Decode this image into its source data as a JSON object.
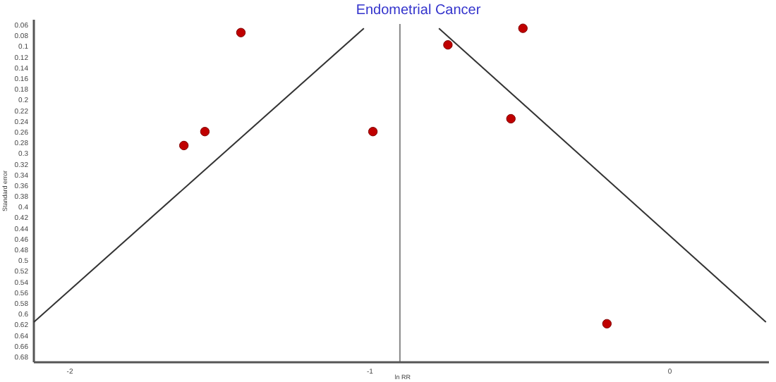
{
  "chart_data": {
    "type": "scatter",
    "title": "Endometrial Cancer",
    "xlabel": "ln RR",
    "ylabel": "Standard error",
    "xlim": [
      -2.12,
      0.33
    ],
    "xticks": [
      -2,
      -1,
      0
    ],
    "ylim": [
      0.69,
      0.05
    ],
    "yticks": [
      0.06,
      0.08,
      0.1,
      0.12,
      0.14,
      0.16,
      0.18,
      0.2,
      0.22,
      0.24,
      0.26,
      0.28,
      0.3,
      0.32,
      0.34,
      0.36,
      0.38,
      0.4,
      0.42,
      0.44,
      0.46,
      0.48,
      0.5,
      0.52,
      0.54,
      0.56,
      0.58,
      0.6,
      0.62,
      0.64,
      0.66,
      0.68
    ],
    "grid": false,
    "series": [
      {
        "color": "#c00000",
        "marker": "circle",
        "x": [
          -1.43,
          -1.55,
          -1.62,
          -0.99,
          -0.74,
          -0.49,
          -0.53,
          -0.21
        ],
        "values": [
          0.074,
          0.259,
          0.285,
          0.259,
          0.097,
          0.066,
          0.235,
          0.618
        ]
      },
      {
        "type": "line",
        "color": "#333333",
        "marker": "none",
        "x": [
          -2.12,
          -1.02
        ],
        "values": [
          0.615,
          0.066
        ]
      },
      {
        "type": "line",
        "color": "#333333",
        "marker": "none",
        "x": [
          -0.77,
          0.32
        ],
        "values": [
          0.066,
          0.615
        ]
      }
    ],
    "ref_lines": [
      {
        "axis": "x",
        "value": -0.9,
        "color": "#888888"
      }
    ]
  }
}
